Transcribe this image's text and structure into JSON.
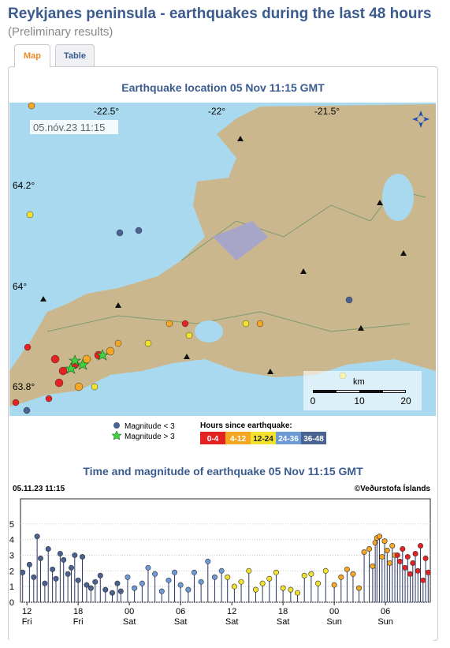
{
  "header": {
    "title": "Reykjanes peninsula - earthquakes during the last 48 hours",
    "subtitle": "(Preliminary results)"
  },
  "tabs": [
    "Map",
    "Table"
  ],
  "map": {
    "title": "Earthquake location   05 Nov 11:15 GMT",
    "timestamp": "05.nóv.23  11:15",
    "lon_labels": [
      "-22.5°",
      "-22°",
      "-21.5°"
    ],
    "lat_labels": [
      "64.2°",
      "64°",
      "63.8°"
    ],
    "scale_unit": "km",
    "scale_labels": [
      "0",
      "10",
      "20"
    ],
    "legend_small": "Magnitude < 3",
    "legend_large": "Magnitude > 3",
    "legend_hours": "Hours since earthquake:"
  },
  "chart_data": {
    "type": "stem",
    "title": "Time and magnitude of earthquake   05 Nov 11:15 GMT",
    "timestamp": "05.11.23  11:15",
    "credit": "©Veðurstofa Íslands",
    "xlim": [
      -0.75,
      47.25
    ],
    "ylim": [
      0,
      6.6
    ],
    "yticks": [
      0,
      1,
      2,
      3,
      4,
      5
    ],
    "xticks": [
      {
        "value": 0,
        "label": "12"
      },
      {
        "value": 6,
        "label": "18"
      },
      {
        "value": 12,
        "label": "00"
      },
      {
        "value": 18,
        "label": "06"
      },
      {
        "value": 24,
        "label": "12"
      },
      {
        "value": 30,
        "label": "18"
      },
      {
        "value": 36,
        "label": "00"
      },
      {
        "value": 42,
        "label": "06"
      }
    ],
    "x_day_labels": [
      "Fri",
      "Fri",
      "Sat",
      "Sat",
      "Sat",
      "Sat",
      "Sun",
      "Sun"
    ],
    "grid": true,
    "stem_color": "#2b3663",
    "series": [
      {
        "name": "36-48",
        "color": "#4a6291",
        "x": [
          -0.5,
          0.3,
          0.8,
          1.2,
          1.6,
          2.1,
          2.5,
          3,
          3.4,
          3.9,
          4.3,
          4.8,
          5.2,
          5.6,
          6,
          6.5,
          7,
          7.5,
          8,
          8.6,
          9.2,
          10,
          10.6,
          11
        ],
        "values": [
          1.9,
          2.4,
          1.6,
          4.2,
          2.8,
          1.2,
          3.4,
          2.1,
          1.5,
          3.1,
          2.7,
          1.8,
          2.2,
          3.0,
          1.4,
          2.9,
          1.1,
          0.9,
          1.3,
          1.7,
          0.8,
          0.6,
          1.2,
          0.7
        ]
      },
      {
        "name": "24-36",
        "color": "#6b9ad6",
        "x": [
          11.8,
          12.6,
          13.5,
          14.2,
          15,
          15.8,
          16.6,
          17.3,
          18,
          18.9,
          19.6,
          20.4,
          21.2,
          22,
          22.8
        ],
        "values": [
          1.6,
          0.9,
          1.2,
          2.2,
          1.8,
          0.7,
          1.4,
          1.9,
          1.1,
          0.8,
          1.9,
          1.3,
          2.6,
          1.6,
          2.0
        ]
      },
      {
        "name": "12-24",
        "color": "#f2e22c",
        "x": [
          23.5,
          24.3,
          25.1,
          26,
          26.8,
          27.6,
          28.4,
          29.2,
          30,
          30.9,
          31.7,
          32.5,
          33.3,
          34.1,
          35
        ],
        "values": [
          1.6,
          1.0,
          1.3,
          2.0,
          0.8,
          1.2,
          1.5,
          1.9,
          0.9,
          0.8,
          0.6,
          1.7,
          1.8,
          1.2,
          2.0
        ]
      },
      {
        "name": "4-12",
        "color": "#f5a623",
        "x": [
          36,
          36.8,
          37.5,
          38.2,
          38.9,
          39.5,
          40.1,
          40.5,
          40.8,
          41,
          41.3,
          41.6,
          41.9,
          42.2,
          42.5,
          42.8,
          43.1
        ],
        "values": [
          1.1,
          1.6,
          2.1,
          1.8,
          0.9,
          3.2,
          3.4,
          2.3,
          3.8,
          4.1,
          4.2,
          2.9,
          3.9,
          3.3,
          2.5,
          3.6,
          3.0
        ]
      },
      {
        "name": "0-4",
        "color": "#e52222",
        "x": [
          43.4,
          43.7,
          44,
          44.3,
          44.6,
          44.9,
          45.2,
          45.5,
          45.8,
          46.1,
          46.4,
          46.7,
          47
        ],
        "values": [
          3.0,
          2.6,
          3.4,
          2.2,
          2.9,
          1.8,
          2.5,
          3.1,
          2.0,
          3.6,
          1.4,
          2.8,
          1.9
        ]
      }
    ]
  }
}
